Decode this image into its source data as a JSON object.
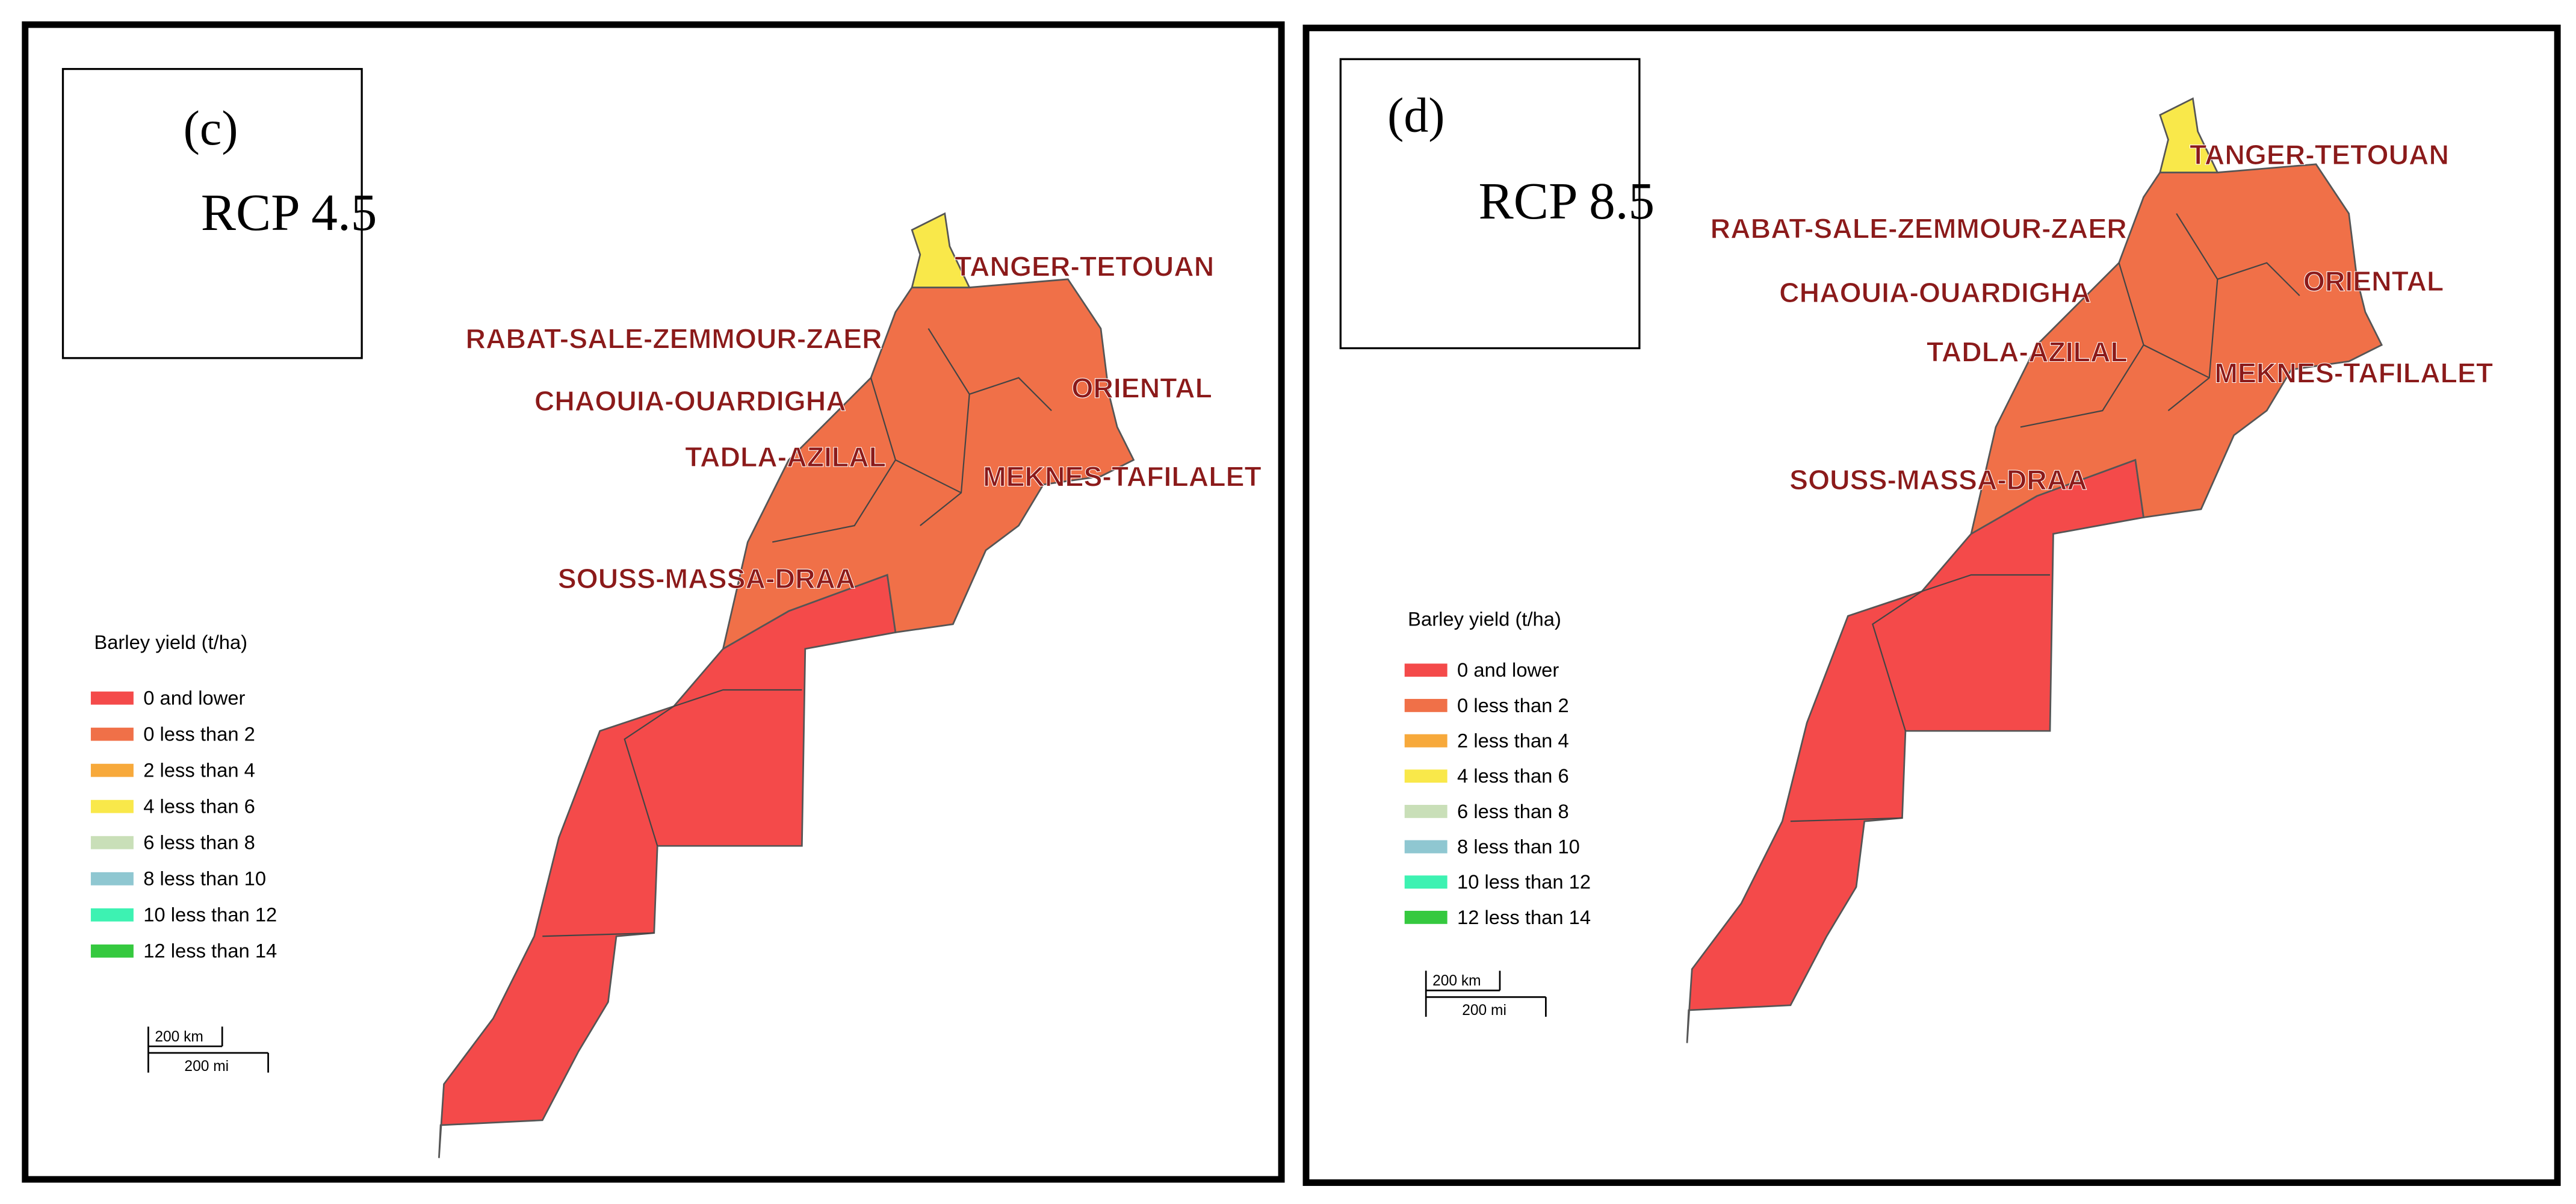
{
  "panels": [
    {
      "label": "(c)",
      "scenario": "RCP 4.5",
      "regions": [
        "TANGER-TETOUAN",
        "RABAT-SALE-ZEMMOUR-ZAER",
        "CHAOUIA-OUARDIGHA",
        "TADLA-AZILAL",
        "ORIENTAL",
        "MEKNES-TAFILALET",
        "SOUSS-MASSA-DRAA"
      ],
      "legend": {
        "title": "Barley yield (t/ha)",
        "items": [
          {
            "label": "0 and lower",
            "color": "#f44a4a"
          },
          {
            "label": "0 less than 2",
            "color": "#f07048"
          },
          {
            "label": "2 less than 4",
            "color": "#f7a93b"
          },
          {
            "label": "4 less than 6",
            "color": "#f9e84a"
          },
          {
            "label": "6 less than 8",
            "color": "#c9dfb8"
          },
          {
            "label": "8 less than 10",
            "color": "#8fc7d1"
          },
          {
            "label": "10 less than 12",
            "color": "#3df2b2"
          },
          {
            "label": "12 less than 14",
            "color": "#35c93f"
          }
        ]
      },
      "scale": {
        "km": "200 km",
        "mi": "200 mi"
      }
    },
    {
      "label": "(d)",
      "scenario": "RCP 8.5",
      "regions": [
        "TANGER-TETOUAN",
        "RABAT-SALE-ZEMMOUR-ZAER",
        "CHAOUIA-OUARDIGHA",
        "TADLA-AZILAL",
        "ORIENTAL",
        "MEKNES-TAFILALET",
        "SOUSS-MASSA-DRAA"
      ],
      "legend": {
        "title": "Barley yield (t/ha)",
        "items": [
          {
            "label": "0 and lower",
            "color": "#f44a4a"
          },
          {
            "label": "0 less than 2",
            "color": "#f07048"
          },
          {
            "label": "2 less than 4",
            "color": "#f7a93b"
          },
          {
            "label": "4 less than 6",
            "color": "#f9e84a"
          },
          {
            "label": "6 less than 8",
            "color": "#c9dfb8"
          },
          {
            "label": "8 less than 10",
            "color": "#8fc7d1"
          },
          {
            "label": "10 less than 12",
            "color": "#3df2b2"
          },
          {
            "label": "12 less than 14",
            "color": "#35c93f"
          }
        ]
      },
      "scale": {
        "km": "200 km",
        "mi": "200 mi"
      }
    }
  ]
}
